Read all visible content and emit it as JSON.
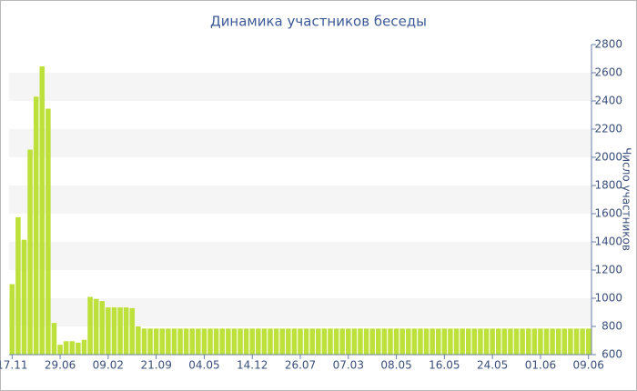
{
  "chart_data": {
    "type": "bar",
    "title": "Динамика участников беседы",
    "y_label": "Число участников",
    "categories": [
      "17.11",
      null,
      null,
      null,
      null,
      null,
      null,
      null,
      "29.06",
      null,
      null,
      null,
      null,
      null,
      null,
      null,
      "09.02",
      null,
      null,
      null,
      null,
      null,
      null,
      null,
      "21.09",
      null,
      null,
      null,
      null,
      null,
      null,
      null,
      "04.05",
      null,
      null,
      null,
      null,
      null,
      null,
      null,
      "14.12",
      null,
      null,
      null,
      null,
      null,
      null,
      null,
      "26.07",
      null,
      null,
      null,
      null,
      null,
      null,
      null,
      "07.03",
      null,
      null,
      null,
      null,
      null,
      null,
      null,
      "08.05",
      null,
      null,
      null,
      null,
      null,
      null,
      null,
      "16.05",
      null,
      null,
      null,
      null,
      null,
      null,
      null,
      "24.05",
      null,
      null,
      null,
      null,
      null,
      null,
      null,
      "01.06",
      null,
      null,
      null,
      null,
      null,
      null,
      null,
      "09.06"
    ],
    "values": [
      1100,
      1575,
      1415,
      2055,
      2430,
      2645,
      2345,
      825,
      670,
      695,
      695,
      685,
      705,
      1010,
      995,
      980,
      935,
      935,
      935,
      935,
      930,
      800,
      785,
      785,
      785,
      785,
      785,
      785,
      785,
      785,
      785,
      785,
      785,
      785,
      785,
      785,
      785,
      785,
      785,
      785,
      785,
      785,
      785,
      785,
      785,
      785,
      785,
      785,
      785,
      785,
      785,
      785,
      785,
      785,
      785,
      785,
      785,
      785,
      785,
      785,
      785,
      785,
      785,
      785,
      785,
      785,
      785,
      785,
      785,
      785,
      785,
      785,
      785,
      785,
      785,
      785,
      785,
      785,
      785,
      785,
      785,
      785,
      785,
      785,
      785,
      785,
      785,
      785,
      785,
      785,
      785,
      785,
      785,
      785,
      785,
      785,
      785
    ],
    "color": "#bde03a",
    "ylim": [
      600,
      2800
    ],
    "yticks": [
      600,
      800,
      1000,
      1200,
      1400,
      1600,
      1800,
      2000,
      2200,
      2400,
      2600,
      2800
    ],
    "grid": true
  }
}
